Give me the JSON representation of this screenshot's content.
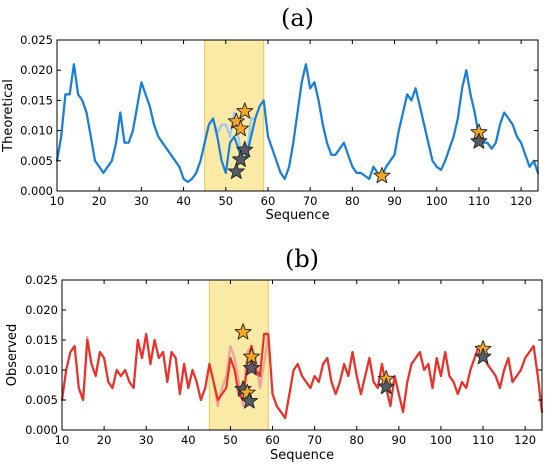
{
  "chart_data": [
    {
      "type": "line",
      "panel_label": "(a)",
      "xlabel": "Sequence",
      "ylabel": "Theoretical",
      "xlim": [
        10,
        124
      ],
      "ylim": [
        0,
        0.025
      ],
      "xticks": [
        10,
        20,
        30,
        40,
        50,
        60,
        70,
        80,
        90,
        100,
        110,
        120
      ],
      "yticks": [
        0.0,
        0.005,
        0.01,
        0.015,
        0.02,
        0.025
      ],
      "ytick_labels": [
        "0.000",
        "0.005",
        "0.010",
        "0.015",
        "0.020",
        "0.025"
      ],
      "highlight_region": [
        45,
        59
      ],
      "colors": {
        "main": "#1a7fd6",
        "light": "#9cc9ef",
        "highlight_fill": "#fbeaa5",
        "highlight_edge": "#e8c65a",
        "star_orange": "#f5a623",
        "star_gray": "#555b64"
      },
      "x": [
        10,
        11,
        12,
        13,
        14,
        15,
        16,
        17,
        18,
        19,
        20,
        21,
        22,
        23,
        24,
        25,
        26,
        27,
        28,
        29,
        30,
        31,
        32,
        33,
        34,
        35,
        36,
        37,
        38,
        39,
        40,
        41,
        42,
        43,
        44,
        45,
        46,
        47,
        48,
        49,
        50,
        51,
        52,
        53,
        54,
        55,
        56,
        57,
        58,
        59,
        60,
        61,
        62,
        63,
        64,
        65,
        66,
        67,
        68,
        69,
        70,
        71,
        72,
        73,
        74,
        75,
        76,
        77,
        78,
        79,
        80,
        81,
        82,
        83,
        84,
        85,
        86,
        87,
        88,
        89,
        90,
        91,
        92,
        93,
        94,
        95,
        96,
        97,
        98,
        99,
        100,
        101,
        102,
        103,
        104,
        105,
        106,
        107,
        108,
        109,
        110,
        111,
        112,
        113,
        114,
        115,
        116,
        117,
        118,
        119,
        120,
        121,
        122,
        123,
        124
      ],
      "series": [
        {
          "values": [
            0.005,
            0.009,
            0.016,
            0.016,
            0.021,
            0.016,
            0.015,
            0.013,
            0.009,
            0.005,
            0.004,
            0.003,
            0.004,
            0.005,
            0.008,
            0.013,
            0.008,
            0.008,
            0.01,
            0.014,
            0.018,
            0.016,
            0.014,
            0.011,
            0.009,
            0.008,
            0.007,
            0.006,
            0.005,
            0.004,
            0.002,
            0.0015,
            0.002,
            0.003,
            0.005,
            0.008,
            0.011,
            0.012,
            0.009,
            0.005,
            0.003,
            0.008,
            0.009,
            0.007,
            0.005,
            0.006,
            0.009,
            0.012,
            0.014,
            0.015,
            0.009,
            0.007,
            0.005,
            0.003,
            0.002,
            0.004,
            0.008,
            0.013,
            0.018,
            0.021,
            0.017,
            0.018,
            0.015,
            0.011,
            0.008,
            0.006,
            0.006,
            0.007,
            0.008,
            0.006,
            0.004,
            0.003,
            0.003,
            0.0025,
            0.002,
            0.004,
            0.003,
            0.0025,
            0.004,
            0.005,
            0.006,
            0.01,
            0.013,
            0.016,
            0.015,
            0.017,
            0.014,
            0.011,
            0.008,
            0.005,
            0.004,
            0.0035,
            0.005,
            0.007,
            0.009,
            0.012,
            0.017,
            0.02,
            0.016,
            0.013,
            0.009,
            0.008,
            0.008,
            0.007,
            0.008,
            0.011,
            0.013,
            0.012,
            0.011,
            0.009,
            0.008,
            0.006,
            0.004,
            0.005,
            0.003
          ]
        },
        {
          "values": [
            0.005,
            0.009,
            0.016,
            0.016,
            0.021,
            0.016,
            0.015,
            0.013,
            0.009,
            0.005,
            0.004,
            0.003,
            0.004,
            0.005,
            0.008,
            0.013,
            0.008,
            0.008,
            0.01,
            0.014,
            0.018,
            0.016,
            0.014,
            0.011,
            0.009,
            0.008,
            0.007,
            0.006,
            0.005,
            0.004,
            0.002,
            0.0015,
            0.002,
            0.003,
            0.005,
            0.008,
            0.011,
            0.012,
            0.0095,
            0.011,
            0.011,
            0.009,
            0.013,
            0.009,
            0.005,
            0.006,
            0.012,
            0.012,
            0.014,
            0.015,
            0.009,
            0.007,
            0.005,
            0.003,
            0.002,
            0.004,
            0.008,
            0.013,
            0.018,
            0.021,
            0.017,
            0.018,
            0.015,
            0.011,
            0.008,
            0.006,
            0.006,
            0.007,
            0.008,
            0.006,
            0.004,
            0.003,
            0.003,
            0.0025,
            0.002,
            0.004,
            0.003,
            0.0025,
            0.004,
            0.005,
            0.006,
            0.01,
            0.013,
            0.016,
            0.015,
            0.017,
            0.014,
            0.011,
            0.008,
            0.005,
            0.004,
            0.0035,
            0.005,
            0.007,
            0.009,
            0.012,
            0.017,
            0.02,
            0.016,
            0.013,
            0.009,
            0.008,
            0.008,
            0.007,
            0.008,
            0.011,
            0.013,
            0.012,
            0.011,
            0.009,
            0.008,
            0.006,
            0.004,
            0.005,
            0.003
          ]
        }
      ],
      "stars": [
        {
          "x": 52.5,
          "y": 0.0115,
          "color": "orange"
        },
        {
          "x": 54.5,
          "y": 0.0132,
          "color": "orange"
        },
        {
          "x": 53.5,
          "y": 0.0103,
          "color": "orange"
        },
        {
          "x": 54.5,
          "y": 0.0068,
          "color": "gray"
        },
        {
          "x": 53.5,
          "y": 0.0052,
          "color": "gray"
        },
        {
          "x": 52.5,
          "y": 0.0032,
          "color": "gray"
        },
        {
          "x": 87,
          "y": 0.0025,
          "color": "orange"
        },
        {
          "x": 110,
          "y": 0.0097,
          "color": "orange"
        },
        {
          "x": 110,
          "y": 0.0082,
          "color": "gray"
        }
      ]
    },
    {
      "type": "line",
      "panel_label": "(b)",
      "xlabel": "Sequence",
      "ylabel": "Observed",
      "xlim": [
        10,
        124
      ],
      "ylim": [
        0,
        0.025
      ],
      "xticks": [
        10,
        20,
        30,
        40,
        50,
        60,
        70,
        80,
        90,
        100,
        110,
        120
      ],
      "yticks": [
        0.0,
        0.005,
        0.01,
        0.015,
        0.02,
        0.025
      ],
      "ytick_labels": [
        "0.000",
        "0.005",
        "0.010",
        "0.015",
        "0.020",
        "0.025"
      ],
      "highlight_region": [
        45,
        59
      ],
      "colors": {
        "main": "#e8322a",
        "light": "#f2a0a0",
        "highlight_fill": "#fbeaa5",
        "highlight_edge": "#e8c65a",
        "star_orange": "#f5a623",
        "star_gray": "#555b64"
      },
      "x": [
        10,
        11,
        12,
        13,
        14,
        15,
        16,
        17,
        18,
        19,
        20,
        21,
        22,
        23,
        24,
        25,
        26,
        27,
        28,
        29,
        30,
        31,
        32,
        33,
        34,
        35,
        36,
        37,
        38,
        39,
        40,
        41,
        42,
        43,
        44,
        45,
        46,
        47,
        48,
        49,
        50,
        51,
        52,
        53,
        54,
        55,
        56,
        57,
        58,
        59,
        60,
        61,
        62,
        63,
        64,
        65,
        66,
        67,
        68,
        69,
        70,
        71,
        72,
        73,
        74,
        75,
        76,
        77,
        78,
        79,
        80,
        81,
        82,
        83,
        84,
        85,
        86,
        87,
        88,
        89,
        90,
        91,
        92,
        93,
        94,
        95,
        96,
        97,
        98,
        99,
        100,
        101,
        102,
        103,
        104,
        105,
        106,
        107,
        108,
        109,
        110,
        111,
        112,
        113,
        114,
        115,
        116,
        117,
        118,
        119,
        120,
        121,
        122,
        123,
        124
      ],
      "series": [
        {
          "values": [
            0.005,
            0.01,
            0.013,
            0.014,
            0.007,
            0.005,
            0.015,
            0.011,
            0.009,
            0.013,
            0.012,
            0.008,
            0.007,
            0.01,
            0.009,
            0.01,
            0.008,
            0.007,
            0.015,
            0.012,
            0.016,
            0.011,
            0.015,
            0.012,
            0.013,
            0.008,
            0.013,
            0.012,
            0.006,
            0.011,
            0.007,
            0.01,
            0.008,
            0.005,
            0.007,
            0.011,
            0.008,
            0.005,
            0.006,
            0.007,
            0.012,
            0.01,
            0.006,
            0.005,
            0.011,
            0.014,
            0.01,
            0.009,
            0.016,
            0.016,
            0.006,
            0.004,
            0.003,
            0.002,
            0.006,
            0.01,
            0.011,
            0.009,
            0.008,
            0.007,
            0.009,
            0.008,
            0.011,
            0.012,
            0.008,
            0.006,
            0.008,
            0.011,
            0.009,
            0.013,
            0.009,
            0.006,
            0.009,
            0.012,
            0.008,
            0.007,
            0.011,
            0.007,
            0.004,
            0.009,
            0.006,
            0.003,
            0.008,
            0.011,
            0.012,
            0.013,
            0.01,
            0.011,
            0.007,
            0.012,
            0.009,
            0.013,
            0.009,
            0.008,
            0.006,
            0.008,
            0.007,
            0.01,
            0.012,
            0.014,
            0.013,
            0.011,
            0.01,
            0.009,
            0.007,
            0.01,
            0.012,
            0.008,
            0.009,
            0.01,
            0.012,
            0.013,
            0.014,
            0.009,
            0.003
          ]
        },
        {
          "values": [
            0.005,
            0.01,
            0.013,
            0.014,
            0.007,
            0.005,
            0.0155,
            0.011,
            0.009,
            0.013,
            0.012,
            0.008,
            0.007,
            0.01,
            0.009,
            0.01,
            0.008,
            0.007,
            0.015,
            0.012,
            0.016,
            0.011,
            0.015,
            0.012,
            0.013,
            0.008,
            0.013,
            0.012,
            0.006,
            0.011,
            0.007,
            0.01,
            0.008,
            0.005,
            0.007,
            0.011,
            0.008,
            0.004,
            0.007,
            0.009,
            0.014,
            0.012,
            0.008,
            0.004,
            0.013,
            0.014,
            0.012,
            0.007,
            0.011,
            0.016,
            0.006,
            0.004,
            0.003,
            0.002,
            0.006,
            0.01,
            0.011,
            0.009,
            0.008,
            0.007,
            0.009,
            0.008,
            0.011,
            0.012,
            0.008,
            0.006,
            0.008,
            0.011,
            0.009,
            0.013,
            0.009,
            0.006,
            0.009,
            0.012,
            0.008,
            0.007,
            0.011,
            0.007,
            0.004,
            0.009,
            0.006,
            0.003,
            0.008,
            0.011,
            0.012,
            0.013,
            0.01,
            0.011,
            0.007,
            0.012,
            0.009,
            0.013,
            0.009,
            0.008,
            0.006,
            0.008,
            0.007,
            0.01,
            0.012,
            0.014,
            0.013,
            0.011,
            0.01,
            0.009,
            0.007,
            0.01,
            0.012,
            0.008,
            0.009,
            0.01,
            0.012,
            0.013,
            0.014,
            0.009,
            0.003
          ]
        }
      ],
      "stars": [
        {
          "x": 53,
          "y": 0.0163,
          "color": "orange"
        },
        {
          "x": 55,
          "y": 0.0122,
          "color": "orange"
        },
        {
          "x": 55,
          "y": 0.0103,
          "color": "gray"
        },
        {
          "x": 53,
          "y": 0.0068,
          "color": "gray"
        },
        {
          "x": 54,
          "y": 0.0062,
          "color": "orange"
        },
        {
          "x": 54.5,
          "y": 0.0048,
          "color": "gray"
        },
        {
          "x": 87,
          "y": 0.0085,
          "color": "orange"
        },
        {
          "x": 87,
          "y": 0.0072,
          "color": "gray"
        },
        {
          "x": 110,
          "y": 0.0135,
          "color": "orange"
        },
        {
          "x": 110,
          "y": 0.0122,
          "color": "gray"
        }
      ]
    }
  ]
}
